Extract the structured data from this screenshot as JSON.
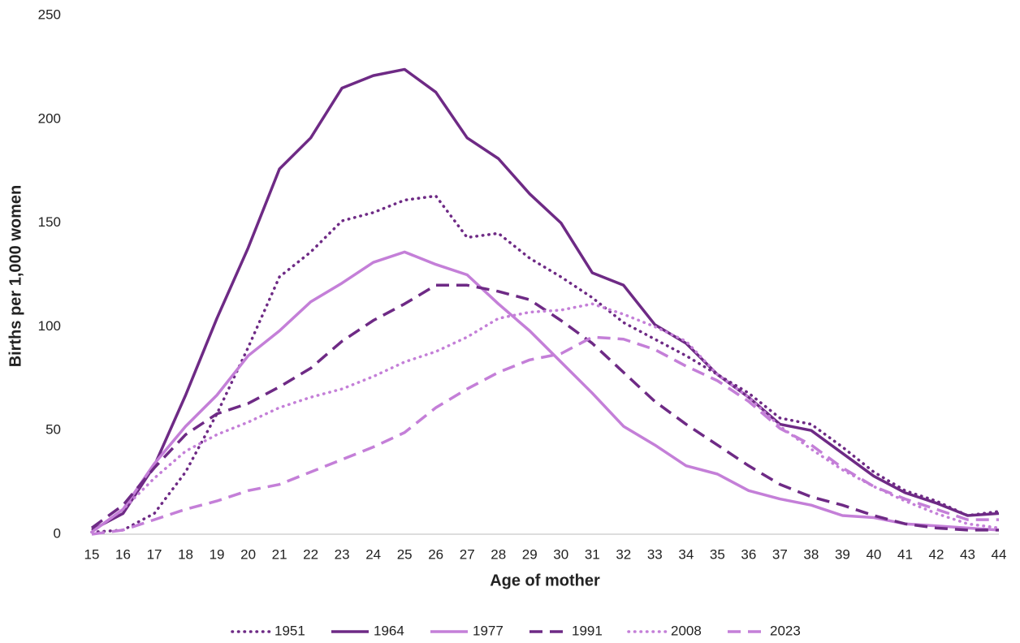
{
  "chart_data": {
    "type": "line",
    "xlabel": "Age of mother",
    "ylabel": "Births per 1,000 women",
    "x": [
      15,
      16,
      17,
      18,
      19,
      20,
      21,
      22,
      23,
      24,
      25,
      26,
      27,
      28,
      29,
      30,
      31,
      32,
      33,
      34,
      35,
      36,
      37,
      38,
      39,
      40,
      41,
      42,
      43,
      44
    ],
    "xlim": [
      15,
      44
    ],
    "ylim": [
      0,
      250
    ],
    "yticks": [
      0,
      50,
      100,
      150,
      200,
      250
    ],
    "grid": false,
    "legend": "bottom",
    "series": [
      {
        "name": "1951",
        "color": "#6e2a85",
        "style": "dotted",
        "values": [
          1,
          2,
          10,
          30,
          58,
          90,
          124,
          136,
          151,
          155,
          161,
          163,
          143,
          145,
          133,
          124,
          114,
          102,
          94,
          86,
          77,
          68,
          56,
          53,
          42,
          30,
          21,
          16,
          9,
          11
        ]
      },
      {
        "name": "1964",
        "color": "#6e2a85",
        "style": "solid",
        "values": [
          2,
          10,
          33,
          67,
          104,
          138,
          176,
          191,
          215,
          221,
          224,
          213,
          191,
          181,
          164,
          150,
          126,
          120,
          101,
          92,
          77,
          66,
          53,
          50,
          39,
          28,
          20,
          15,
          9,
          10
        ]
      },
      {
        "name": "1977",
        "color": "#c47fd8",
        "style": "solid",
        "values": [
          1,
          12,
          34,
          52,
          67,
          86,
          98,
          112,
          121,
          131,
          136,
          130,
          125,
          111,
          98,
          83,
          68,
          52,
          43,
          33,
          29,
          21,
          17,
          14,
          9,
          8,
          5,
          4,
          3,
          2
        ]
      },
      {
        "name": "1991",
        "color": "#6e2a85",
        "style": "dashed",
        "values": [
          3,
          14,
          32,
          48,
          58,
          63,
          71,
          80,
          93,
          103,
          111,
          120,
          120,
          117,
          113,
          103,
          92,
          78,
          64,
          53,
          43,
          33,
          24,
          18,
          14,
          9,
          5,
          3,
          2,
          2
        ]
      },
      {
        "name": "2008",
        "color": "#c47fd8",
        "style": "dotted",
        "values": [
          1,
          12,
          27,
          40,
          48,
          54,
          61,
          66,
          70,
          76,
          83,
          88,
          95,
          104,
          107,
          108,
          111,
          106,
          100,
          93,
          77,
          66,
          52,
          41,
          31,
          23,
          16,
          10,
          5,
          3
        ]
      },
      {
        "name": "2023",
        "color": "#c47fd8",
        "style": "dashed",
        "values": [
          0,
          2,
          7,
          12,
          16,
          21,
          24,
          30,
          36,
          42,
          49,
          61,
          70,
          78,
          84,
          87,
          95,
          94,
          89,
          81,
          74,
          64,
          51,
          43,
          32,
          23,
          17,
          12,
          7,
          7
        ]
      }
    ]
  }
}
